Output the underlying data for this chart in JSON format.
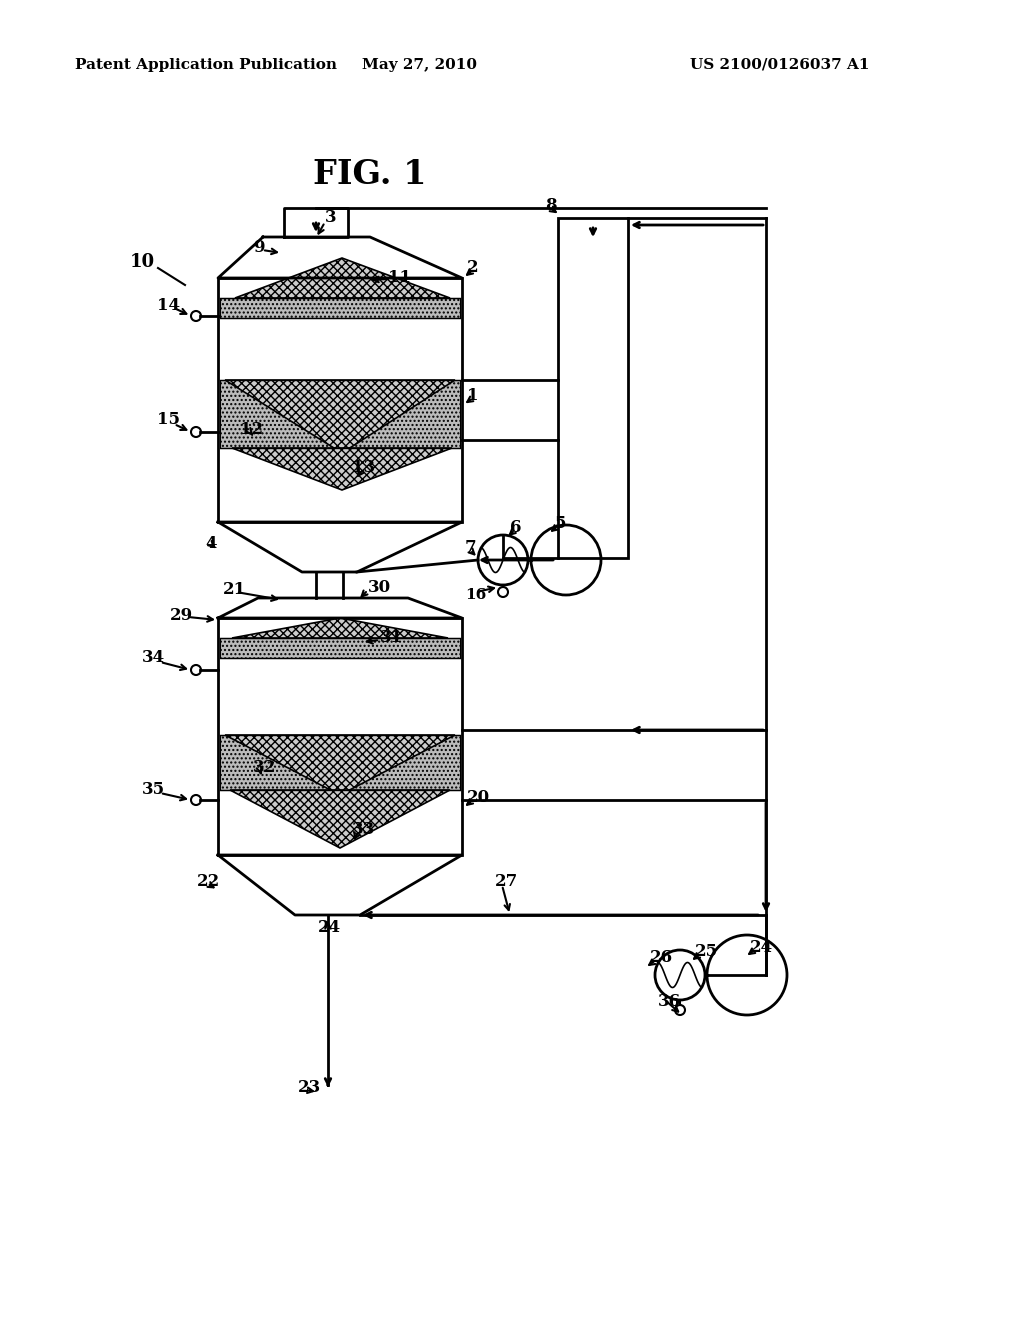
{
  "bg_color": "#ffffff",
  "header_left": "Patent Application Publication",
  "header_center": "May 27, 2010",
  "header_right": "US 2100/0126037 A1",
  "title": "FIG. 1",
  "lw": 2.0
}
